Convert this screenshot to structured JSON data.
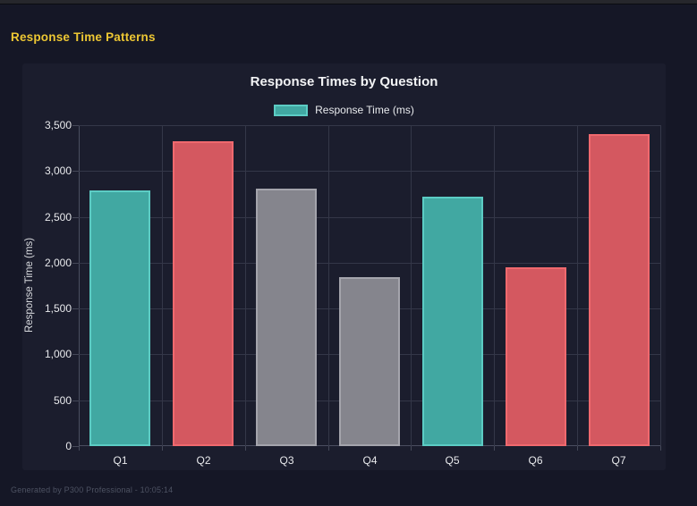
{
  "page": {
    "title": "Response Time Patterns",
    "title_color": "#edc733",
    "background": "#151726",
    "panel_background": "#1b1d2d",
    "footer": "Generated by P300 Professional - 10:05:14"
  },
  "chart_data": {
    "type": "bar",
    "title": "Response Times by Question",
    "xlabel": "",
    "ylabel": "Response Time (ms)",
    "categories": [
      "Q1",
      "Q2",
      "Q3",
      "Q4",
      "Q5",
      "Q6",
      "Q7"
    ],
    "series": [
      {
        "name": "Response Time (ms)",
        "values": [
          2790,
          3320,
          2810,
          1840,
          2720,
          1950,
          3400
        ]
      }
    ],
    "bar_colors": [
      {
        "fill": "#41a8a2",
        "border": "#5cccc4"
      },
      {
        "fill": "#d45860",
        "border": "#f0696e"
      },
      {
        "fill": "#85858d",
        "border": "#a4a4ac"
      },
      {
        "fill": "#85858d",
        "border": "#a4a4ac"
      },
      {
        "fill": "#41a8a2",
        "border": "#5cccc4"
      },
      {
        "fill": "#d45860",
        "border": "#f0696e"
      },
      {
        "fill": "#d45860",
        "border": "#f0696e"
      }
    ],
    "legend": [
      {
        "label": "Response Time (ms)",
        "fill": "#41a8a2",
        "border": "#5cccc4"
      }
    ],
    "legend_position": "top",
    "grid": true,
    "ylim": [
      0,
      3500
    ],
    "ytick_step": 500,
    "yticks_top_to_bottom": [
      "3,500",
      "3,000",
      "2,500",
      "2,000",
      "1,500",
      "1,000",
      "500",
      "0"
    ]
  }
}
